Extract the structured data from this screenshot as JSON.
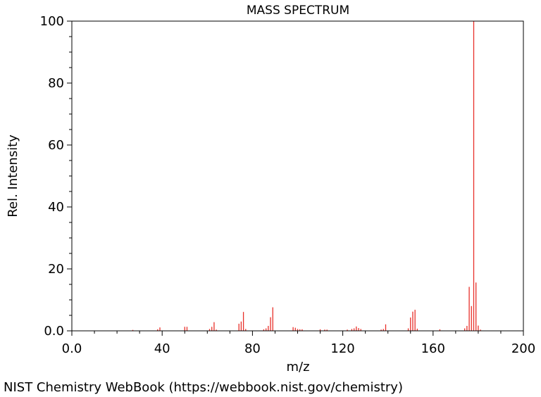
{
  "chart_data": {
    "type": "bar",
    "title": "MASS SPECTRUM",
    "xlabel": "m/z",
    "ylabel": "Rel. Intensity",
    "xlim": [
      0,
      200
    ],
    "ylim": [
      0,
      100
    ],
    "x_ticks": [
      0,
      40,
      80,
      120,
      160,
      200
    ],
    "x_tick_labels": [
      "0.0",
      "40",
      "80",
      "120",
      "160",
      "200"
    ],
    "y_ticks": [
      0,
      20,
      40,
      60,
      80,
      100
    ],
    "y_tick_labels": [
      "0.0",
      "20",
      "40",
      "60",
      "80",
      "100"
    ],
    "grid": false,
    "bar_color": "#e8302a",
    "x": [
      27,
      38,
      39,
      50,
      51,
      61,
      62,
      63,
      64,
      74,
      75,
      76,
      77,
      85,
      86,
      87,
      88,
      89,
      98,
      99,
      100,
      101,
      102,
      110,
      112,
      113,
      122,
      124,
      125,
      126,
      127,
      128,
      137,
      138,
      139,
      149,
      150,
      151,
      152,
      153,
      163,
      174,
      175,
      176,
      177,
      178,
      179,
      180,
      181
    ],
    "values": [
      0.3,
      0.5,
      1.1,
      1.3,
      1.3,
      0.6,
      1.3,
      2.8,
      0.4,
      2.3,
      3.0,
      6.1,
      0.6,
      0.5,
      0.8,
      1.6,
      4.4,
      7.6,
      1.2,
      1.0,
      0.6,
      0.5,
      0.5,
      0.5,
      0.4,
      0.4,
      0.4,
      0.6,
      0.8,
      1.4,
      0.9,
      0.6,
      0.4,
      0.6,
      2.1,
      0.8,
      4.3,
      6.2,
      6.8,
      0.7,
      0.5,
      0.8,
      1.6,
      14.2,
      8.0,
      100,
      15.6,
      1.7,
      0.4
    ]
  },
  "footer": "NIST Chemistry WebBook (https://webbook.nist.gov/chemistry)"
}
